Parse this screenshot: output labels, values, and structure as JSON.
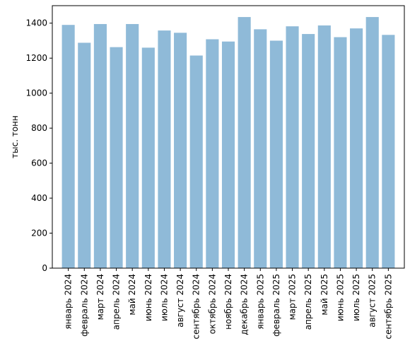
{
  "chart_data": {
    "type": "bar",
    "title": "",
    "xlabel": "",
    "ylabel": "тыс. тонн",
    "ylim": [
      0,
      1500
    ],
    "yticks": [
      0,
      200,
      400,
      600,
      800,
      1000,
      1200,
      1400
    ],
    "grid": false,
    "bar_color": "#8fbad8",
    "categories": [
      "январь 2024",
      "февраль 2024",
      "март 2024",
      "апрель 2024",
      "май 2024",
      "июнь 2024",
      "июль 2024",
      "август 2024",
      "сентябрь 2024",
      "октябрь 2024",
      "ноябрь 2024",
      "декабрь 2024",
      "январь 2025",
      "февраль 2025",
      "март 2025",
      "апрель 2025",
      "май 2025",
      "июнь 2025",
      "июль 2025",
      "август 2025",
      "сентябрь 2025"
    ],
    "values": [
      1390,
      1288,
      1395,
      1263,
      1395,
      1260,
      1358,
      1345,
      1215,
      1308,
      1295,
      1435,
      1365,
      1300,
      1382,
      1338,
      1387,
      1320,
      1370,
      1435,
      1333
    ]
  }
}
